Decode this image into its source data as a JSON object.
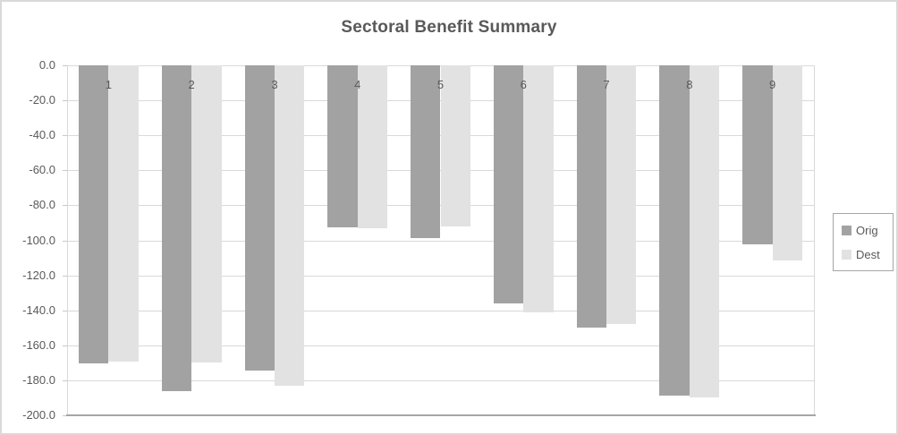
{
  "chart_data": {
    "type": "bar",
    "title": "Sectoral Benefit Summary",
    "categories": [
      "1",
      "2",
      "3",
      "4",
      "5",
      "6",
      "7",
      "8",
      "9"
    ],
    "series": [
      {
        "name": "Orig",
        "color": "#a2a2a2",
        "values": [
          -170.5,
          -186.0,
          -174.5,
          -92.5,
          -98.5,
          -136.0,
          -150.0,
          -188.5,
          -102.5
        ]
      },
      {
        "name": "Dest",
        "color": "#e2e2e2",
        "values": [
          -169.5,
          -170.0,
          -183.0,
          -93.0,
          -92.0,
          -141.0,
          -148.0,
          -190.0,
          -111.5
        ]
      }
    ],
    "ylim": [
      0,
      -200
    ],
    "ytick_step": 20,
    "ytick_labels": [
      "0.0",
      "-20.0",
      "-40.0",
      "-60.0",
      "-80.0",
      "-100.0",
      "-120.0",
      "-140.0",
      "-160.0",
      "-180.0",
      "-200.0"
    ],
    "grid": "horizontal-only",
    "legend_position": "right",
    "category_labels_position": "below-zero-line"
  },
  "colors": {
    "background": "#ffffff",
    "chart_border": "#d9d9d9",
    "gridline": "#d9d9d9",
    "axis_side_line": "#d9d9d9",
    "axis_bottom_line": "#a6a6a6",
    "text": "#595959",
    "title_text": "#595959",
    "legend_border": "#a6a6a6"
  }
}
